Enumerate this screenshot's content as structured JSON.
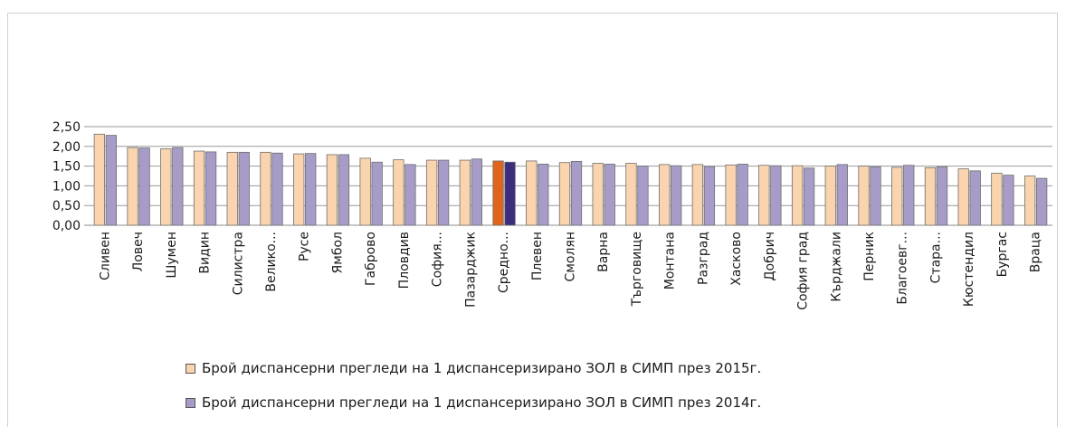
{
  "chart_data": {
    "type": "bar",
    "title": "",
    "xlabel": "",
    "ylabel": "",
    "ylim": [
      0,
      2.5
    ],
    "yticks": [
      "0,00",
      "0,50",
      "1,00",
      "1,50",
      "2,00",
      "2,50"
    ],
    "grid": true,
    "legend_position": "bottom",
    "categories": [
      "Сливен",
      "Ловеч",
      "Шумен",
      "Видин",
      "Силистра",
      "Велико...",
      "Русе",
      "Ямбол",
      "Габрово",
      "Пловдив",
      "София...",
      "Пазарджик",
      "Средно...",
      "Плевен",
      "Смолян",
      "Варна",
      "Търговище",
      "Монтана",
      "Разград",
      "Хасково",
      "Добрич",
      "София град",
      "Кърджали",
      "Перник",
      "Благоевг...",
      "Стара...",
      "Кюстендил",
      "Бургас",
      "Враца"
    ],
    "highlight_category": "Средно...",
    "series": [
      {
        "name": "Брой диспансерни прегледи на 1 диспансеризирано ЗОЛ в СИМП през 2015г.",
        "color": "#f9d4ae",
        "highlight_color": "#e0641c",
        "values": [
          2.31,
          1.97,
          1.94,
          1.88,
          1.85,
          1.85,
          1.81,
          1.79,
          1.7,
          1.66,
          1.65,
          1.65,
          1.63,
          1.63,
          1.59,
          1.57,
          1.57,
          1.54,
          1.54,
          1.53,
          1.52,
          1.51,
          1.5,
          1.5,
          1.47,
          1.46,
          1.43,
          1.32,
          1.25
        ]
      },
      {
        "name": "Брой диспансерни прегледи на 1 диспансеризирано ЗОЛ в СИМП през 2014г.",
        "color": "#a79cc7",
        "highlight_color": "#3c2e7c",
        "values": [
          2.28,
          1.96,
          1.97,
          1.86,
          1.85,
          1.83,
          1.82,
          1.79,
          1.6,
          1.54,
          1.65,
          1.68,
          1.6,
          1.55,
          1.62,
          1.55,
          1.5,
          1.51,
          1.49,
          1.55,
          1.51,
          1.45,
          1.54,
          1.48,
          1.52,
          1.48,
          1.38,
          1.27,
          1.19
        ]
      }
    ]
  }
}
